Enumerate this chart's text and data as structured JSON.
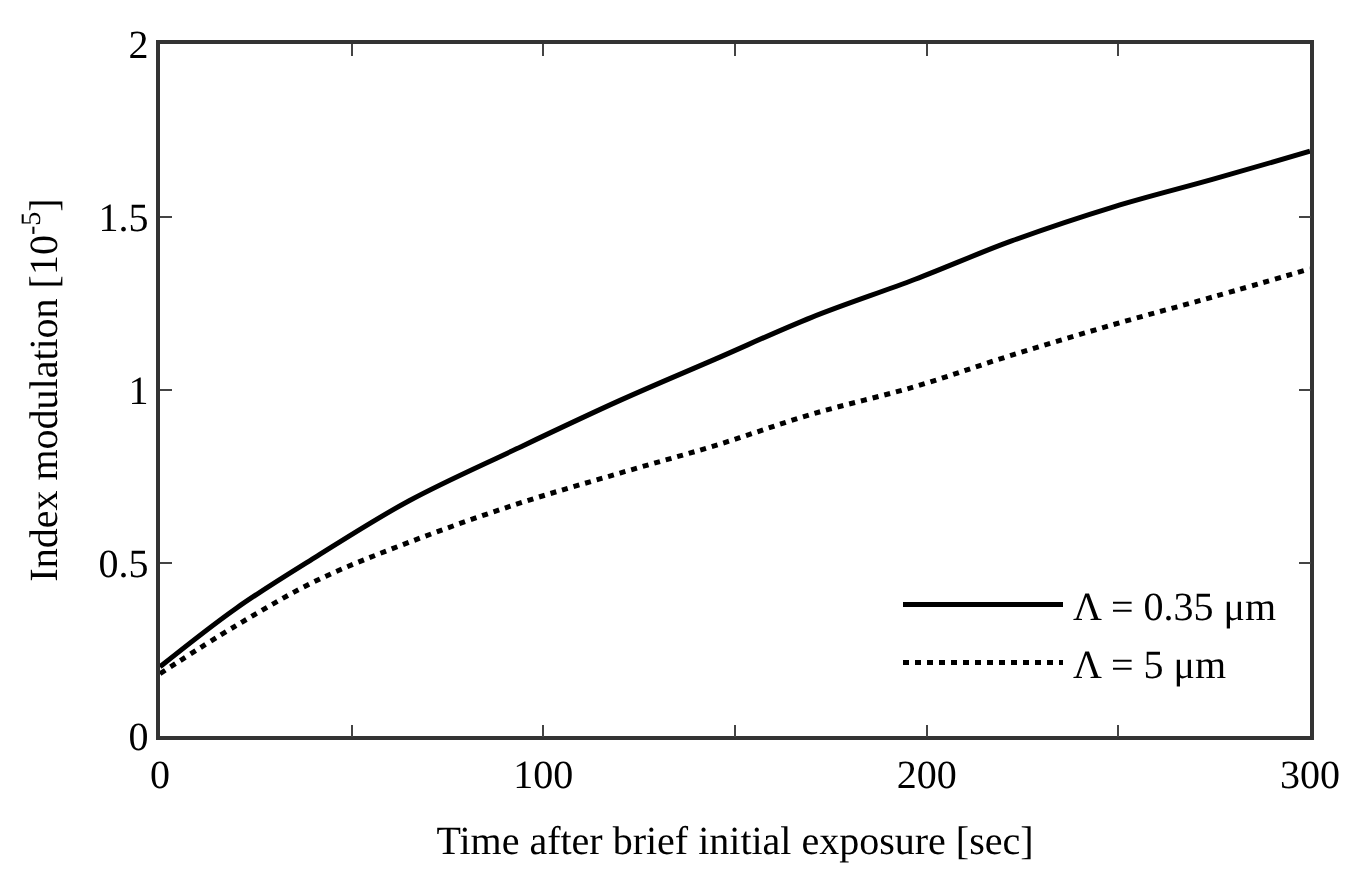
{
  "chart_data": {
    "type": "line",
    "xlabel": "Time after brief initial exposure [sec]",
    "ylabel": "Index modulation [10$^{-5}$]",
    "xlim": [
      0,
      300
    ],
    "xticks": [
      0,
      {
        "value": 50,
        "label": null
      },
      100,
      {
        "value": 150,
        "label": null
      },
      200,
      {
        "value": 250,
        "label": null
      },
      300
    ],
    "ylim": [
      0,
      2
    ],
    "yticks": [
      0,
      0.5,
      1,
      1.5,
      2
    ],
    "legend": "bottom right",
    "marker": "none",
    "series": [
      {
        "name": "Λ = 0.35 μm",
        "color": "#000000",
        "line_style": "solid",
        "x": [
          0,
          20,
          41,
          65,
          93,
          120,
          145,
          170,
          197,
          222,
          249,
          275,
          300
        ],
        "values": [
          0.2,
          0.37,
          0.52,
          0.68,
          0.83,
          0.97,
          1.09,
          1.21,
          1.32,
          1.43,
          1.53,
          1.61,
          1.69
        ]
      },
      {
        "name": "Λ = 5 μm",
        "color": "#000000",
        "line_style": "dotted",
        "x": [
          0,
          20,
          41,
          65,
          93,
          120,
          145,
          170,
          197,
          222,
          249,
          275,
          300
        ],
        "values": [
          0.18,
          0.32,
          0.45,
          0.56,
          0.67,
          0.76,
          0.84,
          0.93,
          1.01,
          1.1,
          1.19,
          1.27,
          1.35
        ]
      }
    ]
  }
}
